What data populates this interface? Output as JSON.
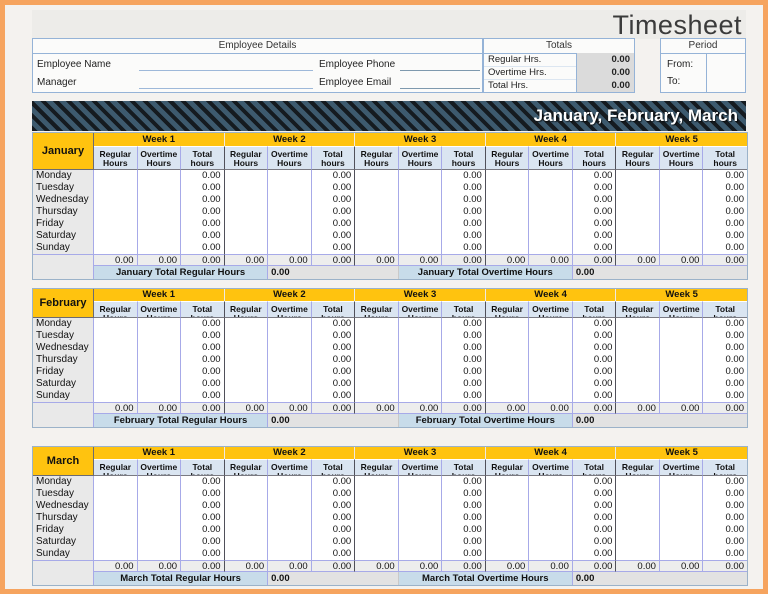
{
  "title": "Timesheet",
  "colors": {
    "frame_orange": "#F6A45F",
    "accent_yellow": "#FFC30F",
    "banner_slate": "#3D5A6E",
    "box_border_blue": "#95B3D7",
    "grid_line_periwinkle": "#A7AAE8",
    "subheader_blue": "#DAE5F1",
    "month_total_label_blue": "#C8DCEA",
    "gray_cell": "#E9E9E9"
  },
  "employee_details": {
    "header": "Employee Details",
    "name_label": "Employee Name",
    "name_value": "",
    "manager_label": "Manager",
    "manager_value": "",
    "phone_label": "Employee Phone",
    "phone_value": "",
    "email_label": "Employee Email",
    "email_value": ""
  },
  "totals": {
    "header": "Totals",
    "rows": [
      {
        "label": "Regular Hrs.",
        "value": "0.00"
      },
      {
        "label": "Overtime Hrs.",
        "value": "0.00"
      },
      {
        "label": "Total Hrs.",
        "value": "0.00"
      }
    ]
  },
  "period": {
    "header": "Period",
    "from_label": "From:",
    "from_value": "",
    "to_label": "To:",
    "to_value": ""
  },
  "banner": {
    "text": "January, February, March"
  },
  "sheet": {
    "weeks": [
      "Week 1",
      "Week 2",
      "Week 3",
      "Week 4",
      "Week 5"
    ],
    "subheaders": [
      "Regular Hours",
      "Overtime Hours",
      "Total hours"
    ],
    "days": [
      "Monday",
      "Tuesday",
      "Wednesday",
      "Thursday",
      "Friday",
      "Saturday",
      "Sunday"
    ],
    "day_row_pattern": [
      "",
      "",
      "0.00"
    ],
    "week_total_value": "0.00",
    "months": [
      {
        "name": "January",
        "total_regular_label": "January Total Regular Hours",
        "total_regular_value": "0.00",
        "total_overtime_label": "January Total Overtime Hours",
        "total_overtime_value": "0.00"
      },
      {
        "name": "February",
        "total_regular_label": "February Total Regular Hours",
        "total_regular_value": "0.00",
        "total_overtime_label": "February Total Overtime Hours",
        "total_overtime_value": "0.00"
      },
      {
        "name": "March",
        "total_regular_label": "March Total Regular Hours",
        "total_regular_value": "0.00",
        "total_overtime_label": "March Total Overtime Hours",
        "total_overtime_value": "0.00"
      }
    ]
  }
}
